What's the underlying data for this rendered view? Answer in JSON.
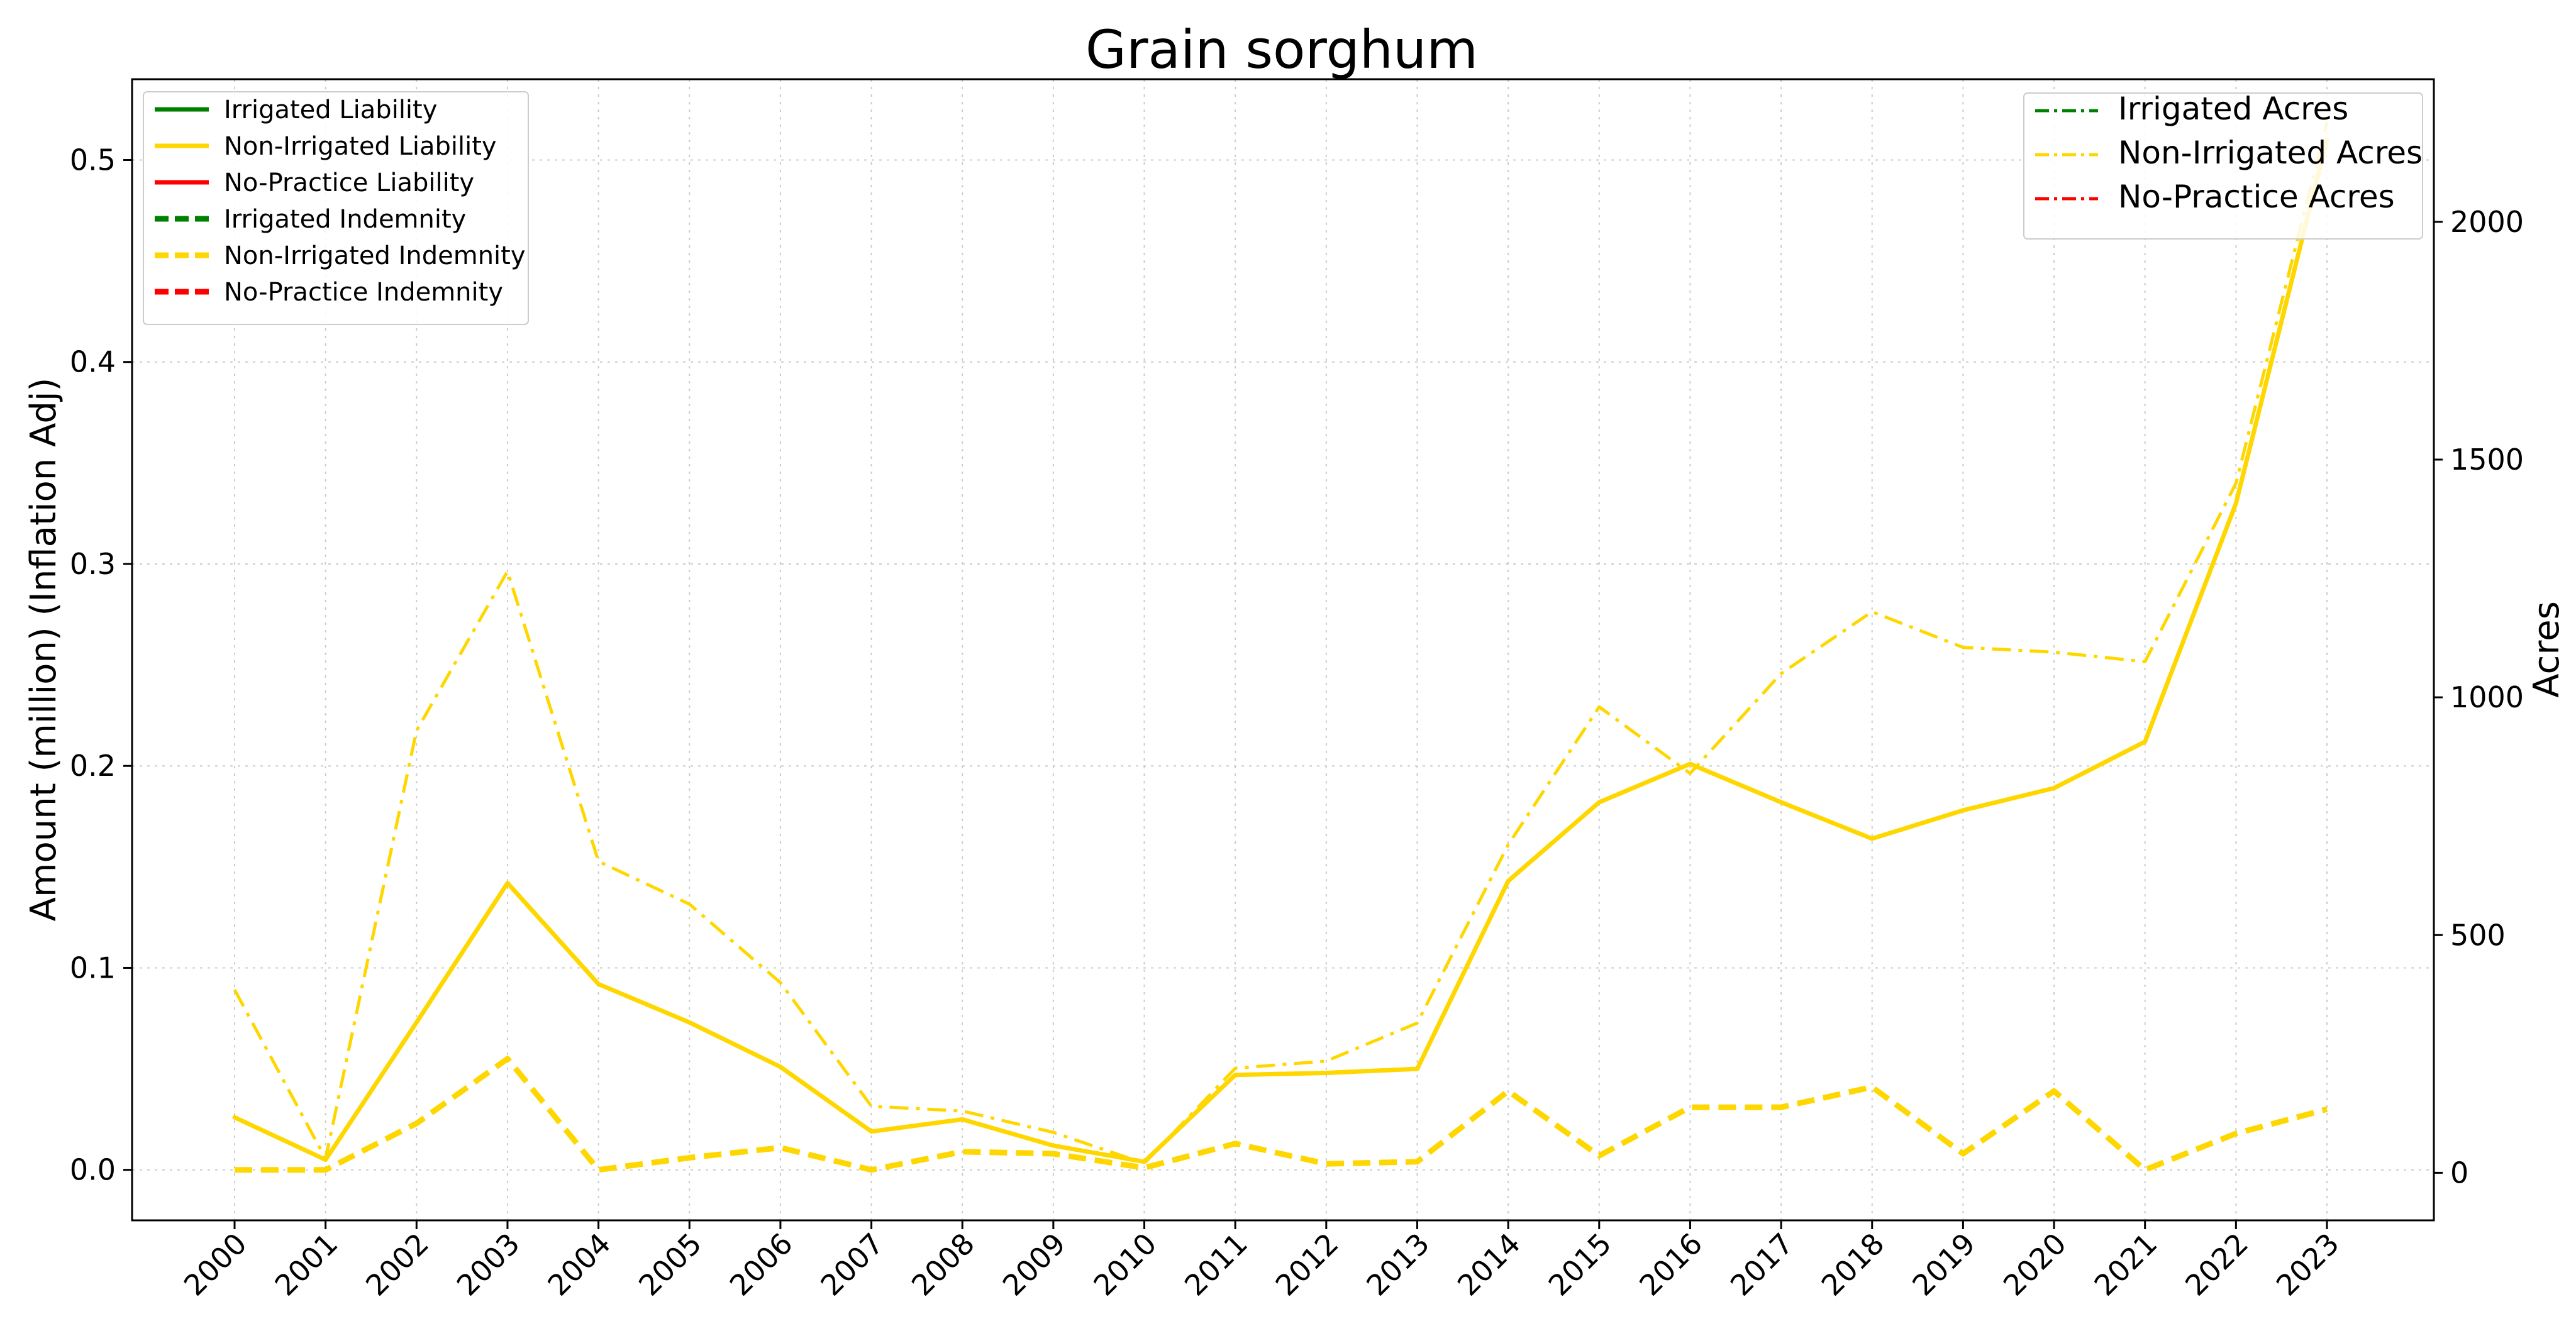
{
  "chart_data": {
    "type": "line",
    "title": "Grain sorghum",
    "ylabel_left": "Amount (million) (Inflation Adj)",
    "ylabel_right": "Acres",
    "xlabel": "",
    "x": [
      "2000",
      "2001",
      "2002",
      "2003",
      "2004",
      "2005",
      "2006",
      "2007",
      "2008",
      "2009",
      "2010",
      "2011",
      "2012",
      "2013",
      "2014",
      "2015",
      "2016",
      "2017",
      "2018",
      "2019",
      "2020",
      "2021",
      "2022",
      "2023"
    ],
    "ylim_left": [
      -0.025,
      0.54
    ],
    "ylim_right": [
      -100,
      2300
    ],
    "yticks_left": [
      "0.0",
      "0.1",
      "0.2",
      "0.3",
      "0.4",
      "0.5"
    ],
    "yticks_right": [
      "0",
      "500",
      "1000",
      "1500",
      "2000"
    ],
    "grid": true,
    "colors": {
      "irrigated": "#008000",
      "non_irrigated": "#FFD700",
      "no_practice": "#FF0000"
    },
    "series": [
      {
        "name": "Non-Irrigated Liability",
        "axis": "left",
        "style": "solid",
        "color": "#FFD700",
        "values": [
          0.026,
          0.005,
          0.073,
          0.142,
          0.092,
          0.073,
          0.051,
          0.019,
          0.025,
          0.012,
          0.004,
          0.047,
          0.048,
          0.05,
          0.143,
          0.182,
          0.201,
          0.182,
          0.164,
          0.178,
          0.189,
          0.212,
          0.33,
          0.51
        ]
      },
      {
        "name": "Non-Irrigated Indemnity",
        "axis": "left",
        "style": "dashed",
        "color": "#FFD700",
        "values": [
          0.0,
          0.0,
          0.023,
          0.055,
          0.0,
          0.006,
          0.011,
          0.0,
          0.009,
          0.008,
          0.001,
          0.013,
          0.003,
          0.004,
          0.039,
          0.007,
          0.031,
          0.031,
          0.041,
          0.008,
          0.039,
          0.0,
          0.018,
          0.03
        ]
      },
      {
        "name": "Non-Irrigated Acres",
        "axis": "right",
        "style": "dashdot",
        "color": "#FFD700",
        "values": [
          385,
          30,
          930,
          1265,
          655,
          565,
          400,
          140,
          130,
          85,
          20,
          220,
          235,
          315,
          690,
          980,
          840,
          1050,
          1180,
          1105,
          1095,
          1075,
          1450,
          2210
        ]
      }
    ],
    "legend_left": [
      {
        "label": "Irrigated Liability",
        "color": "#008000",
        "style": "solid"
      },
      {
        "label": "Non-Irrigated Liability",
        "color": "#FFD700",
        "style": "solid"
      },
      {
        "label": "No-Practice Liability",
        "color": "#FF0000",
        "style": "solid"
      },
      {
        "label": "Irrigated Indemnity",
        "color": "#008000",
        "style": "dashed"
      },
      {
        "label": "Non-Irrigated Indemnity",
        "color": "#FFD700",
        "style": "dashed"
      },
      {
        "label": "No-Practice Indemnity",
        "color": "#FF0000",
        "style": "dashed"
      }
    ],
    "legend_left_placement": "upper-left",
    "legend_right": [
      {
        "label": "Irrigated Acres",
        "color": "#008000",
        "style": "dashdot"
      },
      {
        "label": "Non-Irrigated Acres",
        "color": "#FFD700",
        "style": "dashdot"
      },
      {
        "label": "No-Practice Acres",
        "color": "#FF0000",
        "style": "dashdot"
      }
    ],
    "legend_right_placement": "upper-right"
  }
}
